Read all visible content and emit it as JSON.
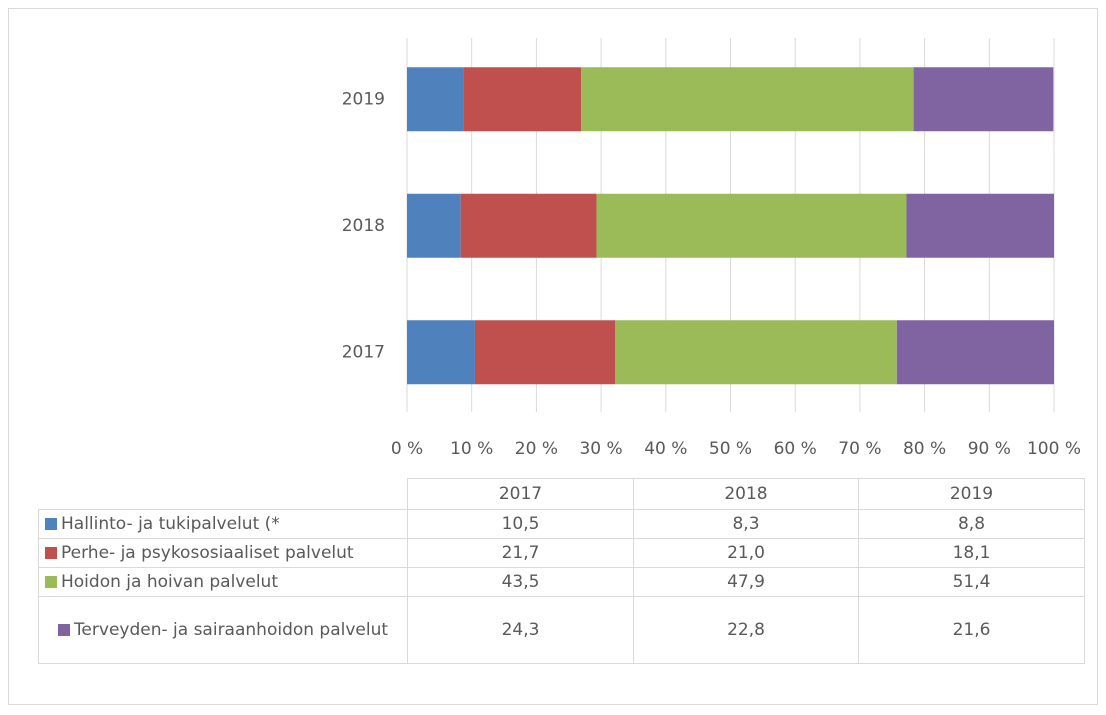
{
  "chart_data": {
    "type": "stacked-bar-horizontal",
    "categories": [
      "2017",
      "2018",
      "2019"
    ],
    "series": [
      {
        "name": "Hallinto- ja tukipalvelut (*",
        "color": "#4f81bd",
        "values": [
          10.5,
          8.3,
          8.8
        ],
        "value_labels": [
          "10,5",
          "8,3",
          "8,8"
        ]
      },
      {
        "name": "Perhe- ja psykososiaaliset palvelut",
        "color": "#c0504d",
        "values": [
          21.7,
          21.0,
          18.1
        ],
        "value_labels": [
          "21,7",
          "21,0",
          "18,1"
        ]
      },
      {
        "name": "Hoidon ja hoivan palvelut",
        "color": "#9bbb59",
        "values": [
          43.5,
          47.9,
          51.4
        ],
        "value_labels": [
          "43,5",
          "47,9",
          "51,4"
        ]
      },
      {
        "name": "Terveyden- ja sairaanhoidon palvelut",
        "color": "#8064a2",
        "values": [
          24.3,
          22.8,
          21.6
        ],
        "value_labels": [
          "24,3",
          "22,8",
          "21,6"
        ]
      }
    ],
    "xlim": [
      0,
      100
    ],
    "xticks": [
      {
        "value": 0,
        "label": "0 %"
      },
      {
        "value": 10,
        "label": "10 %"
      },
      {
        "value": 20,
        "label": "20 %"
      },
      {
        "value": 30,
        "label": "30 %"
      },
      {
        "value": 40,
        "label": "40 %"
      },
      {
        "value": 50,
        "label": "50 %"
      },
      {
        "value": 60,
        "label": "60 %"
      },
      {
        "value": 70,
        "label": "70 %"
      },
      {
        "value": 80,
        "label": "80 %"
      },
      {
        "value": 90,
        "label": "90 %"
      },
      {
        "value": 100,
        "label": "100 %"
      }
    ],
    "grid": true,
    "data_table": true
  }
}
